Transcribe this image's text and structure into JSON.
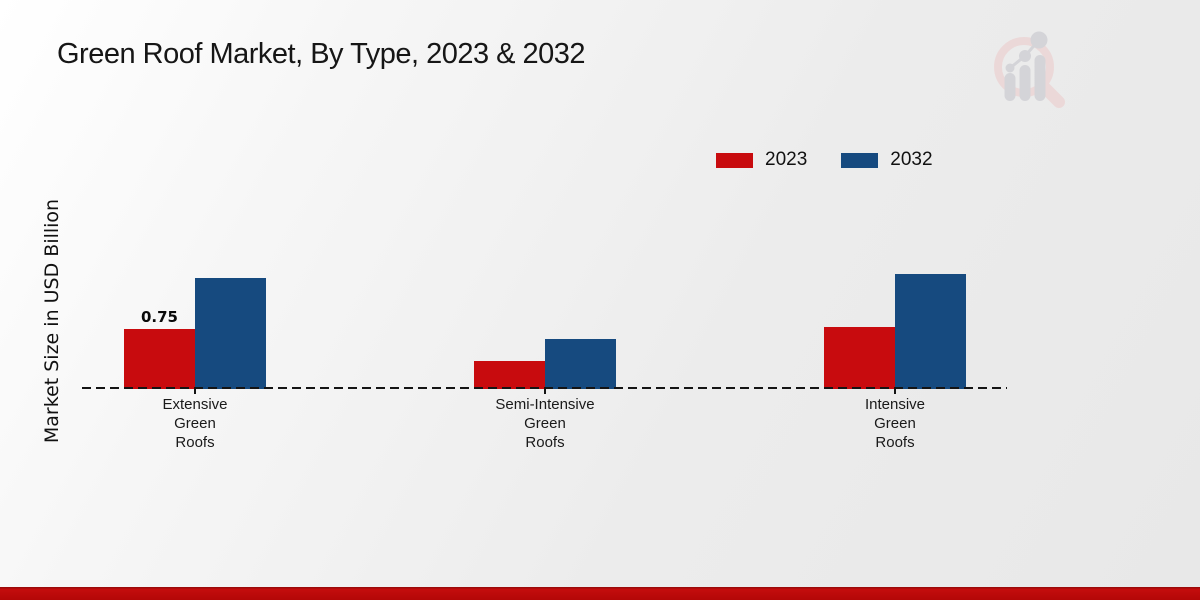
{
  "title": {
    "text": "Green Roof Market, By Type, 2023 & 2032"
  },
  "y_axis": {
    "label": "Market Size in USD Billion"
  },
  "legend": {
    "items": [
      {
        "label": "2023",
        "color": "#c80b0e"
      },
      {
        "label": "2032",
        "color": "#164a7f"
      }
    ]
  },
  "watermark": {
    "icon": "magnifier-bar-chart-logo",
    "ring_color": "#ecd7d7",
    "bar_color": "#d2d2d6"
  },
  "footer": {
    "bar_color": "#c40d0d"
  },
  "chart_data": {
    "type": "bar",
    "title": "Green Roof Market, By Type, 2023 & 2032",
    "xlabel": "",
    "ylabel": "Market Size in USD Billion",
    "categories": [
      "Extensive Green Roofs",
      "Semi-Intensive Green Roofs",
      "Intensive Green Roofs"
    ],
    "category_label_lines": [
      [
        "Extensive",
        "Green",
        "Roofs"
      ],
      [
        "Semi-Intensive",
        "Green",
        "Roofs"
      ],
      [
        "Intensive",
        "Green",
        "Roofs"
      ]
    ],
    "series": [
      {
        "name": "2023",
        "color": "#c80b0e",
        "values": [
          0.75,
          0.34,
          0.78
        ]
      },
      {
        "name": "2032",
        "color": "#164a7f",
        "values": [
          1.41,
          0.62,
          1.46
        ]
      }
    ],
    "data_labels": [
      {
        "series": "2023",
        "category_index": 0,
        "text": "0.75"
      }
    ],
    "ylim": [
      0,
      1.6
    ],
    "grid": false,
    "legend_position": "top-right",
    "baseline_style": "dashed"
  }
}
